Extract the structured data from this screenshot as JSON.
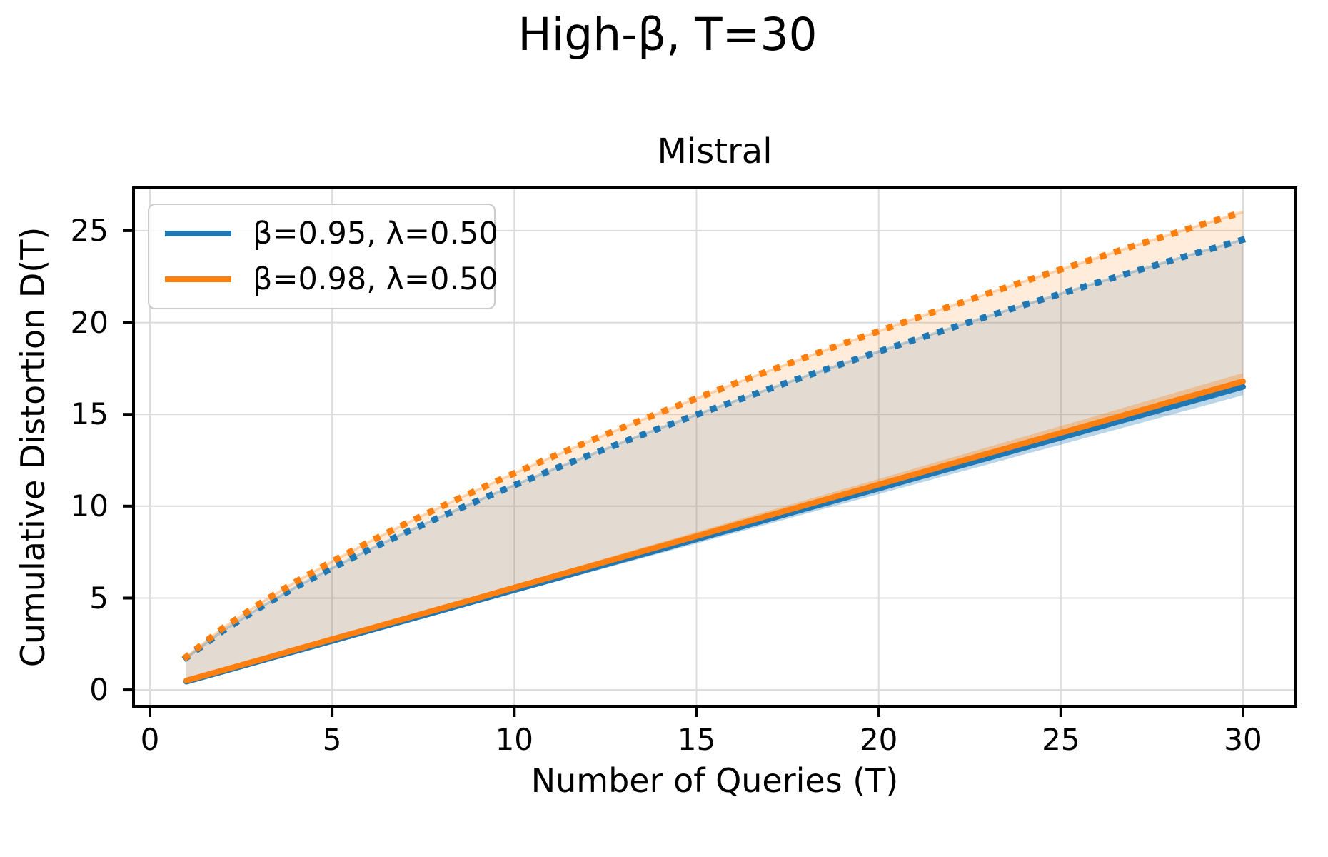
{
  "figure": {
    "suptitle": "High-β, T=30",
    "axes_title": "Mistral",
    "xlabel": "Number of Queries (T)",
    "ylabel": "Cumulative Distortion D(T)"
  },
  "chart_data": {
    "type": "line",
    "suptitle": "High-β, T=30",
    "title": "Mistral",
    "xlabel": "Number of Queries (T)",
    "ylabel": "Cumulative Distortion D(T)",
    "xlim": [
      -0.45,
      31.45
    ],
    "ylim": [
      -0.89,
      27.33
    ],
    "xticks": [
      0,
      5,
      10,
      15,
      20,
      25,
      30
    ],
    "yticks": [
      0,
      5,
      10,
      15,
      20,
      25
    ],
    "grid": true,
    "legend_position": "upper left",
    "colors": {
      "blue": "#1f77b4",
      "orange": "#ff7f0e",
      "grid": "#dcdcdc",
      "spine": "#000000"
    },
    "x": [
      1,
      2,
      3,
      4,
      5,
      6,
      7,
      8,
      9,
      10,
      11,
      12,
      13,
      14,
      15,
      16,
      17,
      18,
      19,
      20,
      21,
      22,
      23,
      24,
      25,
      26,
      27,
      28,
      29,
      30
    ],
    "series": [
      {
        "name": "β=0.95, λ=0.50",
        "color": "#1f77b4",
        "style_mean": "solid",
        "style_upper": "dotted",
        "mean": [
          0.45,
          1.0,
          1.56,
          2.11,
          2.66,
          3.22,
          3.77,
          4.32,
          4.88,
          5.43,
          5.98,
          6.54,
          7.09,
          7.64,
          8.2,
          8.75,
          9.3,
          9.86,
          10.41,
          10.96,
          11.52,
          12.07,
          12.62,
          13.18,
          13.73,
          14.28,
          14.84,
          15.39,
          15.94,
          16.5
        ],
        "band": [
          0.02,
          0.03,
          0.05,
          0.06,
          0.08,
          0.09,
          0.11,
          0.12,
          0.14,
          0.15,
          0.17,
          0.18,
          0.2,
          0.21,
          0.23,
          0.24,
          0.26,
          0.27,
          0.29,
          0.3,
          0.32,
          0.33,
          0.35,
          0.36,
          0.38,
          0.39,
          0.41,
          0.42,
          0.44,
          0.45
        ],
        "upper_dotted": [
          1.75,
          3.21,
          4.46,
          5.59,
          6.63,
          7.62,
          8.55,
          9.44,
          10.3,
          11.14,
          11.95,
          12.73,
          13.5,
          14.25,
          14.98,
          15.69,
          16.39,
          17.08,
          17.75,
          18.42,
          19.07,
          19.71,
          20.34,
          20.96,
          21.57,
          22.17,
          22.77,
          23.36,
          23.94,
          24.51
        ]
      },
      {
        "name": "β=0.98, λ=0.50",
        "color": "#ff7f0e",
        "style_mean": "solid",
        "style_upper": "dotted",
        "mean": [
          0.51,
          1.07,
          1.63,
          2.2,
          2.76,
          3.32,
          3.88,
          4.44,
          5.0,
          5.57,
          6.13,
          6.69,
          7.25,
          7.81,
          8.37,
          8.94,
          9.5,
          10.06,
          10.62,
          11.18,
          11.74,
          12.31,
          12.87,
          13.43,
          13.99,
          14.55,
          15.11,
          15.68,
          16.24,
          16.8
        ],
        "band": [
          0.02,
          0.03,
          0.05,
          0.06,
          0.08,
          0.09,
          0.11,
          0.12,
          0.14,
          0.15,
          0.17,
          0.18,
          0.2,
          0.21,
          0.23,
          0.24,
          0.26,
          0.27,
          0.29,
          0.3,
          0.32,
          0.33,
          0.35,
          0.36,
          0.38,
          0.39,
          0.41,
          0.42,
          0.44,
          0.45
        ],
        "upper_dotted": [
          1.8,
          3.36,
          4.68,
          5.88,
          6.99,
          8.04,
          9.03,
          9.98,
          10.9,
          11.79,
          12.65,
          13.49,
          14.3,
          15.1,
          15.87,
          16.64,
          17.38,
          18.11,
          18.83,
          19.53,
          20.23,
          20.91,
          21.58,
          22.24,
          22.89,
          23.53,
          24.17,
          24.79,
          25.41,
          26.02
        ]
      }
    ],
    "legend": [
      {
        "label": "β=0.95, λ=0.50",
        "color": "#1f77b4"
      },
      {
        "label": "β=0.98, λ=0.50",
        "color": "#ff7f0e"
      }
    ]
  }
}
